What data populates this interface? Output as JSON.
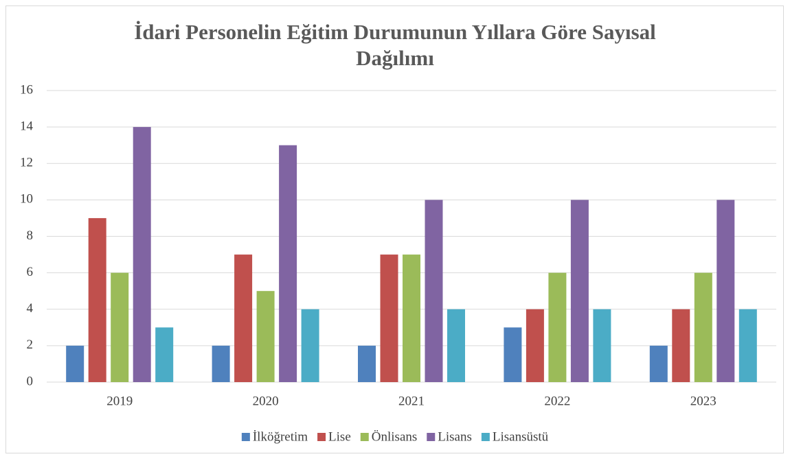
{
  "chart_data": {
    "type": "bar",
    "title": [
      "İdari Personelin Eğitim Durumunun Yıllara Göre Sayısal",
      "Dağılımı"
    ],
    "categories": [
      "2019",
      "2020",
      "2021",
      "2022",
      "2023"
    ],
    "series": [
      {
        "name": "İlköğretim",
        "color": "#4f81bd",
        "values": [
          2,
          2,
          2,
          3,
          2
        ]
      },
      {
        "name": "Lise",
        "color": "#c0504d",
        "values": [
          9,
          7,
          7,
          4,
          4
        ]
      },
      {
        "name": "Önlisans",
        "color": "#9bbb59",
        "values": [
          6,
          5,
          7,
          6,
          6
        ]
      },
      {
        "name": "Lisans",
        "color": "#8064a2",
        "values": [
          14,
          13,
          10,
          10,
          10
        ]
      },
      {
        "name": "Lisansüstü",
        "color": "#4bacc6",
        "values": [
          3,
          4,
          4,
          4,
          4
        ]
      }
    ],
    "ylim": [
      0,
      16
    ],
    "yticks": [
      0,
      2,
      4,
      6,
      8,
      10,
      12,
      14,
      16
    ],
    "grid": true,
    "legend": "bottom"
  }
}
